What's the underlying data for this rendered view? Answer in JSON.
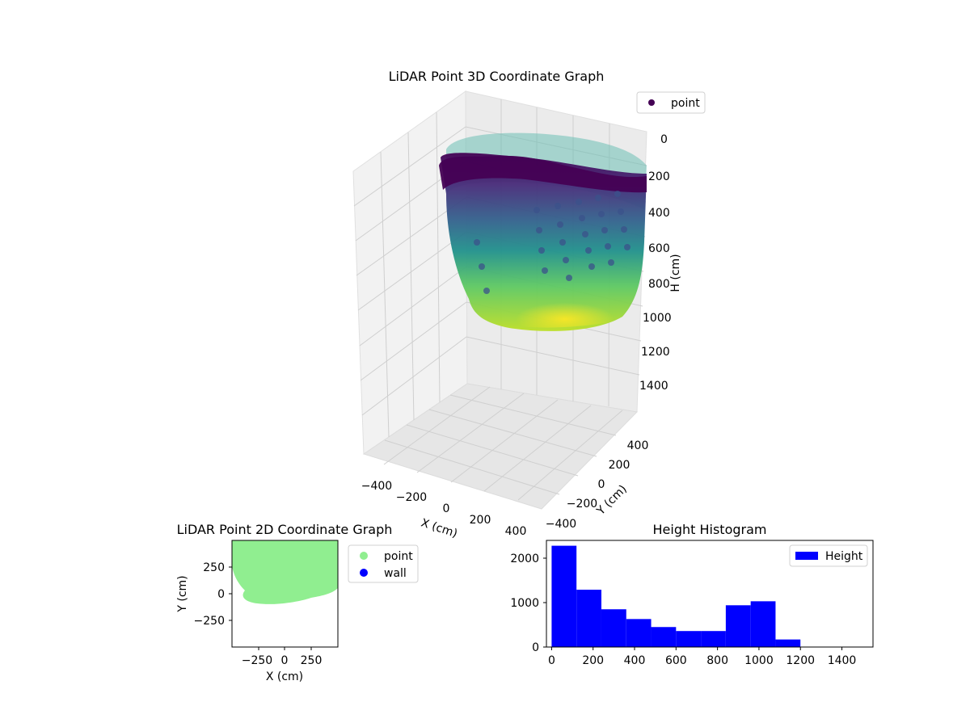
{
  "chart_data": [
    {
      "type": "scatter",
      "projection": "3d",
      "title": "LiDAR Point 3D Coordinate Graph",
      "xlabel": "X (cm)",
      "ylabel": "Y (cm)",
      "zlabel": "H (cm)",
      "z_axis_inverted": true,
      "x_ticks": [
        "−400",
        "−200",
        "0",
        "200",
        "400"
      ],
      "y_ticks": [
        "−400",
        "−200",
        "0",
        "200",
        "400"
      ],
      "z_ticks": [
        "0",
        "200",
        "400",
        "600",
        "800",
        "1000",
        "1200",
        "1400"
      ],
      "legend": [
        {
          "label": "point",
          "color": "#440154"
        }
      ],
      "legend_position": "top-right",
      "colormap": "viridis",
      "grid": true,
      "shape": "bowl-shaped point cloud, height 0 at rim to ~1100 at bottom"
    },
    {
      "type": "scatter",
      "title": "LiDAR Point 2D Coordinate Graph",
      "xlabel": "X (cm)",
      "ylabel": "Y (cm)",
      "xlim": [
        -450,
        450
      ],
      "ylim": [
        -450,
        450
      ],
      "x_ticks": [
        "−250",
        "0",
        "250"
      ],
      "y_ticks": [
        "250",
        "0",
        "−250"
      ],
      "legend": [
        {
          "label": "point",
          "color": "#90ee90"
        },
        {
          "label": "wall",
          "color": "#0000ff"
        }
      ],
      "legend_position": "outside-right"
    },
    {
      "type": "bar",
      "subtype": "histogram",
      "title": "Height Histogram",
      "bin_edges": [
        0,
        120,
        240,
        360,
        480,
        600,
        720,
        840,
        960,
        1080,
        1200
      ],
      "values": [
        2280,
        1290,
        850,
        630,
        450,
        360,
        360,
        940,
        1030,
        170
      ],
      "xlim": [
        -25,
        1550
      ],
      "ylim": [
        0,
        2400
      ],
      "x_ticks": [
        "0",
        "200",
        "400",
        "600",
        "800",
        "1000",
        "1200",
        "1400"
      ],
      "x_tick_values": [
        0,
        200,
        400,
        600,
        800,
        1000,
        1200,
        1400
      ],
      "y_ticks": [
        "0",
        "1000",
        "2000"
      ],
      "y_tick_values": [
        0,
        1000,
        2000
      ],
      "legend": [
        {
          "label": "Height",
          "color": "#0000ff"
        }
      ],
      "legend_position": "top-right"
    }
  ]
}
